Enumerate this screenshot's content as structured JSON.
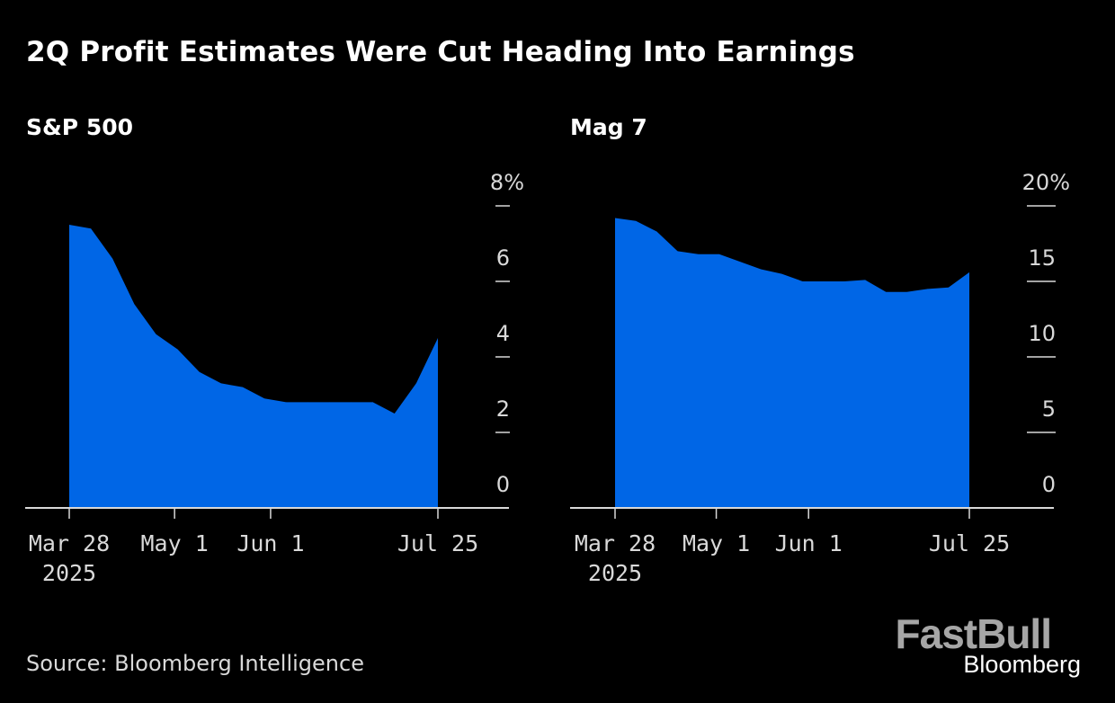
{
  "header": {
    "title": "2Q Profit Estimates Were Cut Heading Into Earnings"
  },
  "footer": {
    "source": "Source: Bloomberg Intelligence"
  },
  "watermark": {
    "brand": "FastBull",
    "publisher": "Bloomberg"
  },
  "colors": {
    "background": "#000000",
    "fill": "#0066e6",
    "axis": "#d9d9d9",
    "text": "#ffffff"
  },
  "chart_data": [
    {
      "type": "area",
      "title": "S&P 500",
      "xlabel": "",
      "ylabel": "",
      "x_start": "2025-03-28",
      "x_step_days": 7,
      "x": [
        "Mar 28",
        "Apr 4",
        "Apr 11",
        "Apr 18",
        "Apr 25",
        "May 2",
        "May 9",
        "May 16",
        "May 23",
        "May 30",
        "Jun 6",
        "Jun 13",
        "Jun 20",
        "Jun 27",
        "Jul 4",
        "Jul 11",
        "Jul 18",
        "Jul 25"
      ],
      "values": [
        7.5,
        7.4,
        6.6,
        5.4,
        4.6,
        4.2,
        3.6,
        3.3,
        3.2,
        2.9,
        2.8,
        2.8,
        2.8,
        2.8,
        2.8,
        2.5,
        3.3,
        4.5
      ],
      "ylim": [
        0,
        8
      ],
      "y_ticks": [
        0,
        2,
        4,
        6,
        8
      ],
      "y_tick_labels": [
        "0",
        "2",
        "4",
        "6",
        "8%"
      ],
      "x_ticks": [
        {
          "label": "Mar 28",
          "sublabel": "2025",
          "day": 0
        },
        {
          "label": "May 1",
          "sublabel": "",
          "day": 34
        },
        {
          "label": "Jun 1",
          "sublabel": "",
          "day": 65
        },
        {
          "label": "Jul 25",
          "sublabel": "",
          "day": 119
        }
      ],
      "x_range_days": [
        -14,
        140
      ],
      "grid": false,
      "y_axis_side": "right"
    },
    {
      "type": "area",
      "title": "Mag 7",
      "xlabel": "",
      "ylabel": "",
      "x_start": "2025-03-28",
      "x_step_days": 7,
      "x": [
        "Mar 28",
        "Apr 4",
        "Apr 11",
        "Apr 18",
        "Apr 25",
        "May 2",
        "May 9",
        "May 16",
        "May 23",
        "May 30",
        "Jun 6",
        "Jun 13",
        "Jun 20",
        "Jun 27",
        "Jul 4",
        "Jul 11",
        "Jul 18",
        "Jul 25"
      ],
      "values": [
        19.2,
        19.0,
        18.3,
        17.0,
        16.8,
        16.8,
        16.3,
        15.8,
        15.5,
        15.0,
        15.0,
        15.0,
        15.1,
        14.3,
        14.3,
        14.5,
        14.6,
        15.6
      ],
      "ylim": [
        0,
        20
      ],
      "y_ticks": [
        0,
        5,
        10,
        15,
        20
      ],
      "y_tick_labels": [
        "0",
        "5",
        "10",
        "15",
        "20%"
      ],
      "x_ticks": [
        {
          "label": "Mar 28",
          "sublabel": "2025",
          "day": 0
        },
        {
          "label": "May 1",
          "sublabel": "",
          "day": 34
        },
        {
          "label": "Jun 1",
          "sublabel": "",
          "day": 65
        },
        {
          "label": "Jul 25",
          "sublabel": "",
          "day": 119
        }
      ],
      "x_range_days": [
        -14,
        140
      ],
      "grid": false,
      "y_axis_side": "right"
    }
  ]
}
